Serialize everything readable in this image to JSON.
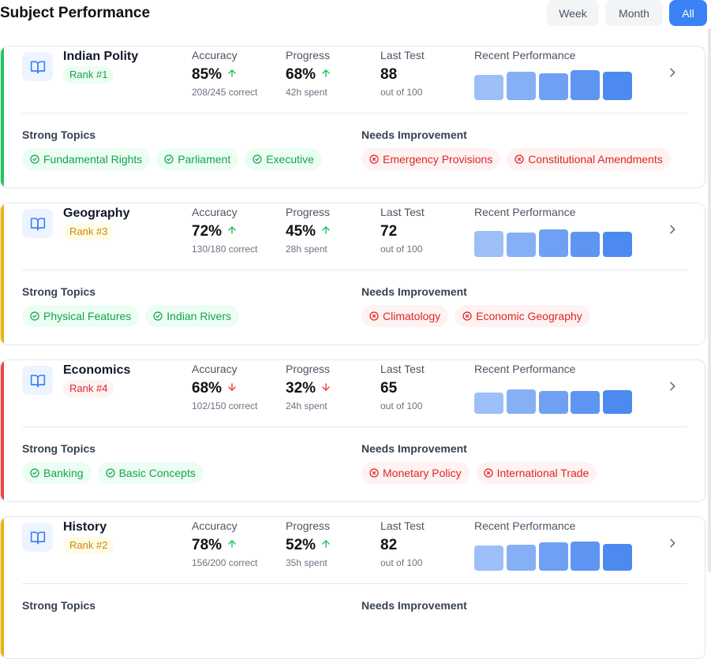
{
  "header": {
    "title": "Subject Performance",
    "filters": [
      {
        "label": "Week",
        "active": false
      },
      {
        "label": "Month",
        "active": false
      },
      {
        "label": "All",
        "active": true
      }
    ]
  },
  "labels": {
    "accuracy": "Accuracy",
    "progress": "Progress",
    "last_test": "Last Test",
    "recent": "Recent Performance",
    "strong": "Strong Topics",
    "weak": "Needs Improvement",
    "out_of": "out of 100"
  },
  "colors": {
    "green": "#22c55e",
    "yellow": "#eab308",
    "red": "#ef4444",
    "blue": "#3b82f6"
  },
  "subjects": [
    {
      "name": "Indian Polity",
      "rank": "Rank #1",
      "rank_style": "green",
      "accuracy": "85%",
      "accuracy_trend": "up",
      "accuracy_sub": "208/245 correct",
      "progress": "68%",
      "progress_trend": "up",
      "progress_sub": "42h spent",
      "last_test": "88",
      "recent_performance": [
        0.72,
        0.82,
        0.78,
        0.86,
        0.82
      ],
      "strong_topics": [
        "Fundamental Rights",
        "Parliament",
        "Executive"
      ],
      "weak_topics": [
        "Emergency Provisions",
        "Constitutional Amendments"
      ]
    },
    {
      "name": "Geography",
      "rank": "Rank #3",
      "rank_style": "yellow",
      "accuracy": "72%",
      "accuracy_trend": "up",
      "accuracy_sub": "130/180 correct",
      "progress": "45%",
      "progress_trend": "up",
      "progress_sub": "28h spent",
      "last_test": "72",
      "recent_performance": [
        0.76,
        0.7,
        0.8,
        0.72,
        0.72
      ],
      "strong_topics": [
        "Physical Features",
        "Indian Rivers"
      ],
      "weak_topics": [
        "Climatology",
        "Economic Geography"
      ]
    },
    {
      "name": "Economics",
      "rank": "Rank #4",
      "rank_style": "red",
      "accuracy": "68%",
      "accuracy_trend": "down",
      "accuracy_sub": "102/150 correct",
      "progress": "32%",
      "progress_trend": "down",
      "progress_sub": "24h spent",
      "last_test": "65",
      "recent_performance": [
        0.62,
        0.7,
        0.66,
        0.66,
        0.68
      ],
      "strong_topics": [
        "Banking",
        "Basic Concepts"
      ],
      "weak_topics": [
        "Monetary Policy",
        "International Trade"
      ]
    },
    {
      "name": "History",
      "rank": "Rank #2",
      "rank_style": "yellow",
      "accuracy": "78%",
      "accuracy_trend": "up",
      "accuracy_sub": "156/200 correct",
      "progress": "52%",
      "progress_trend": "up",
      "progress_sub": "35h spent",
      "last_test": "82",
      "recent_performance": [
        0.72,
        0.76,
        0.82,
        0.84,
        0.78
      ],
      "strong_topics": [],
      "weak_topics": []
    }
  ]
}
